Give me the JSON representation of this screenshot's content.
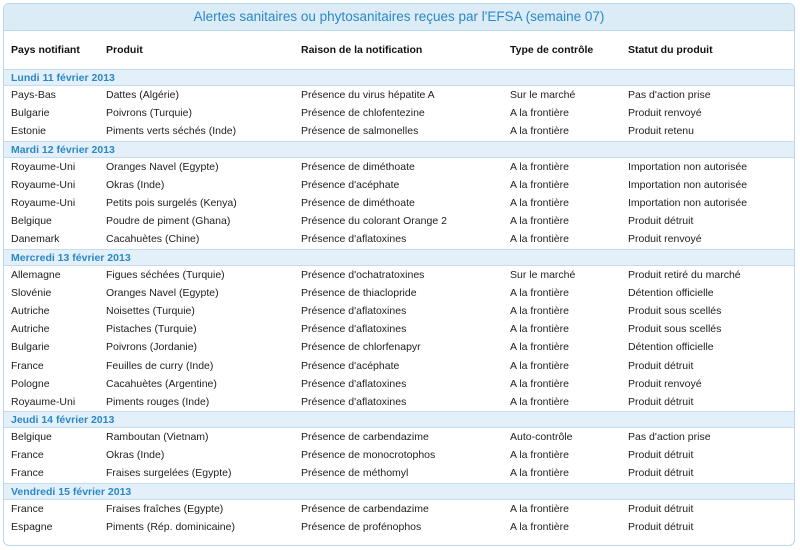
{
  "title": "Alertes sanitaires ou phytosanitaires reçues par l'EFSA (semaine 07)",
  "columns": [
    "Pays notifiant",
    "Produit",
    "Raison de la notification",
    "Type de contrôle",
    "Statut du produit"
  ],
  "sections": [
    {
      "day": "Lundi 11 février 2013",
      "rows": [
        [
          "Pays-Bas",
          "Dattes (Algérie)",
          "Présence du virus hépatite A",
          "Sur le marché",
          "Pas d'action prise"
        ],
        [
          "Bulgarie",
          "Poivrons (Turquie)",
          "Présence de chlofentezine",
          "A la frontière",
          "Produit renvoyé"
        ],
        [
          "Estonie",
          "Piments verts séchés (Inde)",
          "Présence de salmonelles",
          "A la frontière",
          "Produit retenu"
        ]
      ]
    },
    {
      "day": "Mardi 12 février 2013",
      "rows": [
        [
          "Royaume-Uni",
          "Oranges Navel (Egypte)",
          "Présence de diméthoate",
          "A la frontière",
          "Importation non autorisée"
        ],
        [
          "Royaume-Uni",
          "Okras (Inde)",
          "Présence d'acéphate",
          "A la frontière",
          "Importation non autorisée"
        ],
        [
          "Royaume-Uni",
          "Petits pois surgelés (Kenya)",
          "Présence de diméthoate",
          "A la frontière",
          "Importation non autorisée"
        ],
        [
          "Belgique",
          "Poudre de piment (Ghana)",
          "Présence du colorant Orange 2",
          "A la frontière",
          "Produit détruit"
        ],
        [
          "Danemark",
          "Cacahuètes (Chine)",
          "Présence d'aflatoxines",
          "A la frontière",
          "Produit renvoyé"
        ]
      ]
    },
    {
      "day": "Mercredi 13 février 2013",
      "rows": [
        [
          "Allemagne",
          "Figues séchées (Turquie)",
          "Présence d'ochatratoxines",
          "Sur le marché",
          "Produit retiré du marché"
        ],
        [
          "Slovénie",
          "Oranges Navel (Egypte)",
          "Présence de thiaclopride",
          "A la frontière",
          "Détention officielle"
        ],
        [
          "Autriche",
          "Noisettes (Turquie)",
          "Présence d'aflatoxines",
          "A la frontière",
          "Produit sous scellés"
        ],
        [
          "Autriche",
          "Pistaches (Turquie)",
          "Présence d'aflatoxines",
          "A la frontière",
          "Produit sous scellés"
        ],
        [
          "Bulgarie",
          "Poivrons (Jordanie)",
          "Présence de chlorfenapyr",
          "A la frontière",
          "Détention officielle"
        ],
        [
          "France",
          "Feuilles de curry (Inde)",
          "Présence d'acéphate",
          "A la frontière",
          "Produit détruit"
        ],
        [
          "Pologne",
          "Cacahuètes (Argentine)",
          "Présence d'aflatoxines",
          "A la frontière",
          "Produit renvoyé"
        ],
        [
          "Royaume-Uni",
          "Piments rouges (Inde)",
          "Présence d'aflatoxines",
          "A la frontière",
          "Produit détruit"
        ]
      ]
    },
    {
      "day": "Jeudi 14 février 2013",
      "rows": [
        [
          "Belgique",
          "Ramboutan (Vietnam)",
          "Présence de carbendazime",
          "Auto-contrôle",
          "Pas d'action prise"
        ],
        [
          "France",
          "Okras (Inde)",
          "Présence de monocrotophos",
          "A la frontière",
          "Produit détruit"
        ],
        [
          "France",
          "Fraises surgelées (Egypte)",
          "Présence de méthomyl",
          "A la frontière",
          "Produit détruit"
        ]
      ]
    },
    {
      "day": "Vendredi 15 février 2013",
      "rows": [
        [
          "France",
          "Fraises fraîches (Egypte)",
          "Présence de carbendazime",
          "A la frontière",
          "Produit détruit"
        ],
        [
          "Espagne",
          "Piments (Rép. dominicaine)",
          "Présence de profénophos",
          "A la frontière",
          "Produit détruit"
        ]
      ]
    }
  ]
}
